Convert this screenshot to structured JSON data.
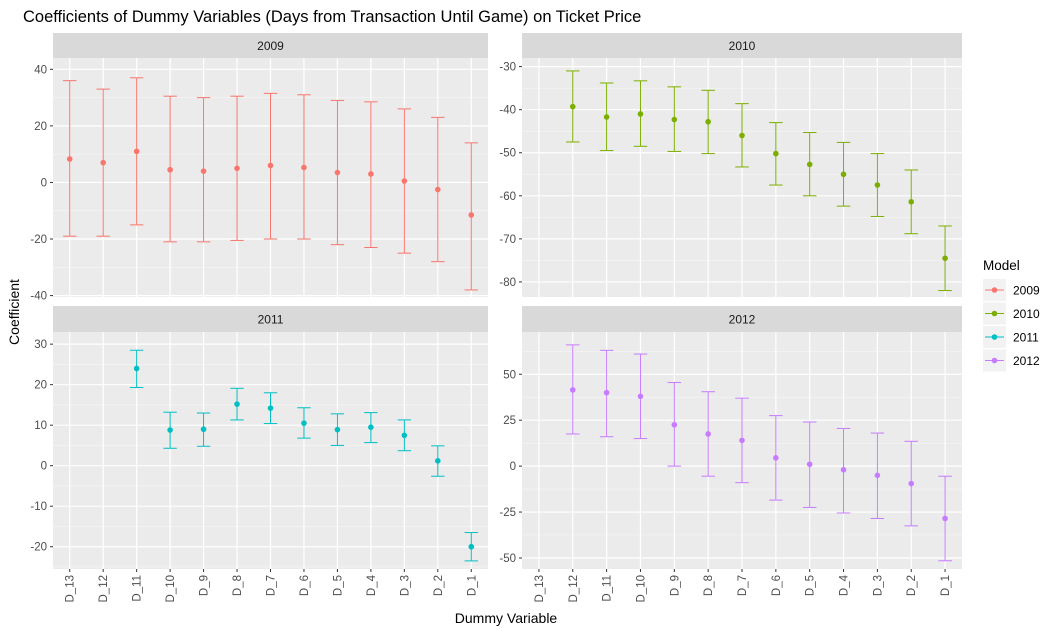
{
  "chart_data": {
    "type": "scatter",
    "subtype": "point-errorbar-facets",
    "title": "Coefficients of Dummy Variables (Days from Transaction Until Game) on Ticket Price",
    "xlabel": "Dummy Variable",
    "ylabel": "Coefficient",
    "categories": [
      "D_13",
      "D_12",
      "D_11",
      "D_10",
      "D_9",
      "D_8",
      "D_7",
      "D_6",
      "D_5",
      "D_4",
      "D_3",
      "D_2",
      "D_1"
    ],
    "legend": {
      "title": "Model",
      "placement": "right",
      "items": [
        {
          "label": "2009",
          "color": "#F8766D"
        },
        {
          "label": "2010",
          "color": "#7CAE00"
        },
        {
          "label": "2011",
          "color": "#00BFC4"
        },
        {
          "label": "2012",
          "color": "#C77CFF"
        }
      ]
    },
    "grid": true,
    "panel_background": "#EBEBEB",
    "strip_background": "#D9D9D9",
    "panels": [
      {
        "name": "2009",
        "color": "#F8766D",
        "ylim": [
          -40.5,
          44
        ],
        "yticks": [
          -40,
          -20,
          0,
          20,
          40
        ],
        "ytick_labels": [
          "-40",
          "-20",
          "0",
          "20",
          "40"
        ],
        "points": [
          {
            "x": "D_13",
            "y": 8.3,
            "low": -19,
            "high": 36
          },
          {
            "x": "D_12",
            "y": 7,
            "low": -19,
            "high": 33
          },
          {
            "x": "D_11",
            "y": 11,
            "low": -15,
            "high": 37
          },
          {
            "x": "D_10",
            "y": 4.5,
            "low": -21,
            "high": 30.5
          },
          {
            "x": "D_9",
            "y": 4,
            "low": -21,
            "high": 30
          },
          {
            "x": "D_8",
            "y": 5,
            "low": -20.5,
            "high": 30.5
          },
          {
            "x": "D_7",
            "y": 6,
            "low": -20,
            "high": 31.5
          },
          {
            "x": "D_6",
            "y": 5.3,
            "low": -20,
            "high": 31
          },
          {
            "x": "D_5",
            "y": 3.5,
            "low": -22,
            "high": 29
          },
          {
            "x": "D_4",
            "y": 3,
            "low": -23,
            "high": 28.5
          },
          {
            "x": "D_3",
            "y": 0.5,
            "low": -25,
            "high": 26
          },
          {
            "x": "D_2",
            "y": -2.5,
            "low": -28,
            "high": 23
          },
          {
            "x": "D_1",
            "y": -11.5,
            "low": -38,
            "high": 14
          }
        ]
      },
      {
        "name": "2010",
        "color": "#7CAE00",
        "ylim": [
          -83.5,
          -28
        ],
        "yticks": [
          -80,
          -70,
          -60,
          -50,
          -40,
          -30
        ],
        "ytick_labels": [
          "-80",
          "-70",
          "-60",
          "-50",
          "-40",
          "-30"
        ],
        "points": [
          {
            "x": "D_12",
            "y": -39.3,
            "low": -47.5,
            "high": -31
          },
          {
            "x": "D_11",
            "y": -41.7,
            "low": -49.5,
            "high": -33.8
          },
          {
            "x": "D_10",
            "y": -41,
            "low": -48.5,
            "high": -33.3
          },
          {
            "x": "D_9",
            "y": -42.3,
            "low": -49.7,
            "high": -34.7
          },
          {
            "x": "D_8",
            "y": -42.8,
            "low": -50.2,
            "high": -35.5
          },
          {
            "x": "D_7",
            "y": -46,
            "low": -53.3,
            "high": -38.6
          },
          {
            "x": "D_6",
            "y": -50.2,
            "low": -57.5,
            "high": -43
          },
          {
            "x": "D_5",
            "y": -52.7,
            "low": -60,
            "high": -45.3
          },
          {
            "x": "D_4",
            "y": -55,
            "low": -62.4,
            "high": -47.6
          },
          {
            "x": "D_3",
            "y": -57.5,
            "low": -64.8,
            "high": -50.2
          },
          {
            "x": "D_2",
            "y": -61.4,
            "low": -68.8,
            "high": -54
          },
          {
            "x": "D_1",
            "y": -74.5,
            "low": -82,
            "high": -67
          }
        ]
      },
      {
        "name": "2011",
        "color": "#00BFC4",
        "ylim": [
          -25.5,
          33
        ],
        "yticks": [
          -20,
          -10,
          0,
          10,
          20,
          30
        ],
        "ytick_labels": [
          "-20",
          "-10",
          "0",
          "10",
          "20",
          "30"
        ],
        "points": [
          {
            "x": "D_11",
            "y": 24,
            "low": 19.3,
            "high": 28.5
          },
          {
            "x": "D_10",
            "y": 8.8,
            "low": 4.3,
            "high": 13.2
          },
          {
            "x": "D_9",
            "y": 9,
            "low": 4.8,
            "high": 13
          },
          {
            "x": "D_8",
            "y": 15.2,
            "low": 11.3,
            "high": 19.1
          },
          {
            "x": "D_7",
            "y": 14.2,
            "low": 10.4,
            "high": 18
          },
          {
            "x": "D_6",
            "y": 10.5,
            "low": 6.8,
            "high": 14.3
          },
          {
            "x": "D_5",
            "y": 8.9,
            "low": 5,
            "high": 12.8
          },
          {
            "x": "D_4",
            "y": 9.5,
            "low": 5.7,
            "high": 13.1
          },
          {
            "x": "D_3",
            "y": 7.5,
            "low": 3.7,
            "high": 11.3
          },
          {
            "x": "D_2",
            "y": 1.2,
            "low": -2.6,
            "high": 4.9
          },
          {
            "x": "D_1",
            "y": -20,
            "low": -23.5,
            "high": -16.5
          }
        ]
      },
      {
        "name": "2012",
        "color": "#C77CFF",
        "ylim": [
          -56,
          73
        ],
        "yticks": [
          -50,
          -25,
          0,
          25,
          50
        ],
        "ytick_labels": [
          "-50",
          "-25",
          "0",
          "25",
          "50"
        ],
        "points": [
          {
            "x": "D_12",
            "y": 41.5,
            "low": 17.5,
            "high": 66
          },
          {
            "x": "D_11",
            "y": 40,
            "low": 16,
            "high": 63
          },
          {
            "x": "D_10",
            "y": 38,
            "low": 15,
            "high": 61
          },
          {
            "x": "D_9",
            "y": 22.5,
            "low": 0,
            "high": 45.5
          },
          {
            "x": "D_8",
            "y": 17.5,
            "low": -5.5,
            "high": 40.5
          },
          {
            "x": "D_7",
            "y": 14,
            "low": -9,
            "high": 37
          },
          {
            "x": "D_6",
            "y": 4.5,
            "low": -18.5,
            "high": 27.5
          },
          {
            "x": "D_5",
            "y": 1,
            "low": -22.5,
            "high": 24
          },
          {
            "x": "D_4",
            "y": -2,
            "low": -25.5,
            "high": 20.5
          },
          {
            "x": "D_3",
            "y": -5,
            "low": -28.5,
            "high": 18
          },
          {
            "x": "D_2",
            "y": -9.5,
            "low": -32.5,
            "high": 13.5
          },
          {
            "x": "D_1",
            "y": -28.5,
            "low": -51.5,
            "high": -5.5
          }
        ]
      }
    ]
  }
}
